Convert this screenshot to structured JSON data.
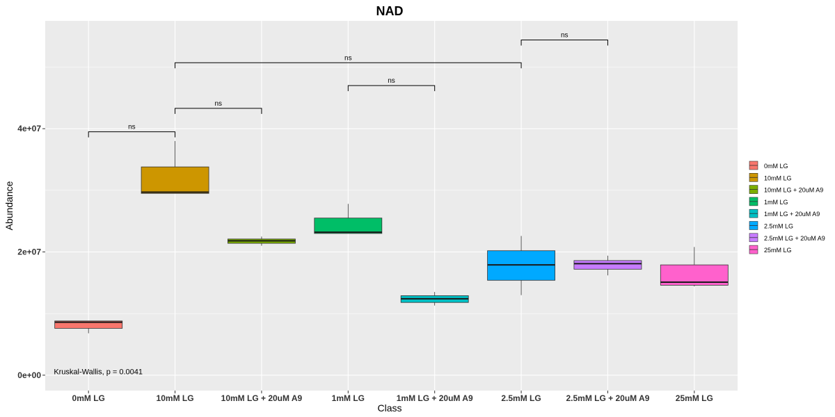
{
  "chart_data": {
    "type": "box",
    "title": "NAD",
    "xlabel": "Class",
    "ylabel": "Abundance",
    "ylim": [
      -2500000,
      57500000
    ],
    "yticks": [
      0,
      20000000,
      40000000
    ],
    "ytick_labels": [
      "0e+00",
      "2e+07",
      "4e+07"
    ],
    "categories": [
      "0mM LG",
      "10mM LG",
      "10mM LG + 20uM A9",
      "1mM LG",
      "1mM LG + 20uM A9",
      "2.5mM LG",
      "2.5mM LG + 20uM A9",
      "25mM LG"
    ],
    "colors": [
      "#F8766D",
      "#CD9600",
      "#7CAE00",
      "#00BE67",
      "#00BFC4",
      "#00A9FF",
      "#C77CFF",
      "#FF61CC"
    ],
    "boxes": [
      {
        "category": "0mM LG",
        "min": 6800000,
        "q1": 7600000,
        "median": 8600000,
        "q3": 8800000,
        "max": 8800000
      },
      {
        "category": "10mM LG",
        "min": 29500000,
        "q1": 29500000,
        "median": 29700000,
        "q3": 33800000,
        "max": 38000000
      },
      {
        "category": "10mM LG + 20uM A9",
        "min": 21000000,
        "q1": 21400000,
        "median": 21800000,
        "q3": 22100000,
        "max": 22500000
      },
      {
        "category": "1mM LG",
        "min": 23000000,
        "q1": 23000000,
        "median": 23200000,
        "q3": 25500000,
        "max": 27800000
      },
      {
        "category": "1mM LG + 20uM A9",
        "min": 11300000,
        "q1": 11800000,
        "median": 12400000,
        "q3": 12900000,
        "max": 13500000
      },
      {
        "category": "2.5mM LG",
        "min": 13000000,
        "q1": 15400000,
        "median": 17900000,
        "q3": 20200000,
        "max": 22600000
      },
      {
        "category": "2.5mM LG + 20uM A9",
        "min": 16200000,
        "q1": 17200000,
        "median": 18100000,
        "q3": 18600000,
        "max": 19400000
      },
      {
        "category": "25mM LG",
        "min": 14400000,
        "q1": 14600000,
        "median": 15100000,
        "q3": 17900000,
        "max": 20800000
      }
    ],
    "comparisons": [
      {
        "from": "0mM LG",
        "to": "10mM LG",
        "y": 39500000,
        "label": "ns"
      },
      {
        "from": "10mM LG",
        "to": "10mM LG + 20uM A9",
        "y": 43300000,
        "label": "ns"
      },
      {
        "from": "1mM LG",
        "to": "1mM LG + 20uM A9",
        "y": 47000000,
        "label": "ns"
      },
      {
        "from": "10mM LG",
        "to": "2.5mM LG",
        "y": 50700000,
        "label": "ns"
      },
      {
        "from": "2.5mM LG",
        "to": "2.5mM LG + 20uM A9",
        "y": 54400000,
        "label": "ns"
      }
    ],
    "annotation": {
      "text": "Kruskal-Wallis, p = 0.0041",
      "x": 0.3,
      "y": 400000
    },
    "legend": {
      "position": "right",
      "entries": [
        "0mM LG",
        "10mM LG",
        "10mM LG + 20uM A9",
        "1mM LG",
        "1mM LG + 20uM A9",
        "2.5mM LG",
        "2.5mM LG + 20uM A9",
        "25mM LG"
      ]
    },
    "grid": true,
    "panel_color": "#EBEBEB",
    "grid_color": "#FFFFFF"
  }
}
